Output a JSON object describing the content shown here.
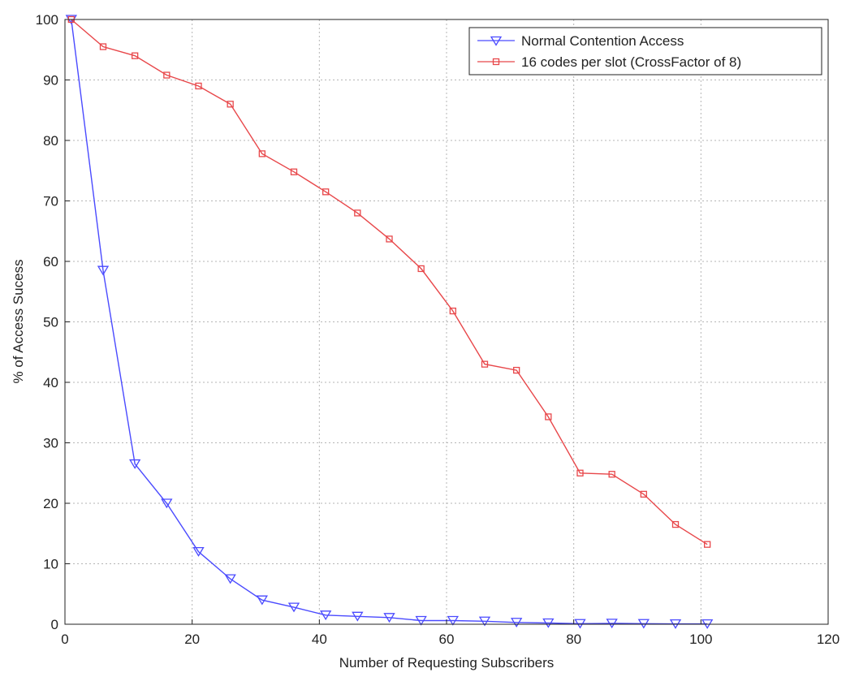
{
  "chart_data": {
    "type": "line",
    "title": "",
    "xlabel": "Number of Requesting Subscribers",
    "ylabel": "% of Access Sucess",
    "xlim": [
      0,
      120
    ],
    "ylim": [
      0,
      100
    ],
    "xticks": [
      0,
      20,
      40,
      60,
      80,
      100,
      120
    ],
    "yticks": [
      0,
      10,
      20,
      30,
      40,
      50,
      60,
      70,
      80,
      90,
      100
    ],
    "xtick_labels": [
      "0",
      "20",
      "40",
      "60",
      "80",
      "100",
      "120"
    ],
    "ytick_labels": [
      "0",
      "10",
      "20",
      "30",
      "40",
      "50",
      "60",
      "70",
      "80",
      "90",
      "100"
    ],
    "grid": true,
    "legend_position": "top-right",
    "x": [
      1,
      6,
      11,
      16,
      21,
      26,
      31,
      36,
      41,
      46,
      51,
      56,
      61,
      66,
      71,
      76,
      81,
      86,
      91,
      96,
      101
    ],
    "series": [
      {
        "name": "Normal Contention Access",
        "color": "#4a4aff",
        "marker": "triangle-down",
        "values": [
          100,
          58.5,
          26.5,
          20,
          12,
          7.5,
          4,
          2.8,
          1.5,
          1.3,
          1.1,
          0.6,
          0.6,
          0.5,
          0.3,
          0.2,
          0.1,
          0.15,
          0.1,
          0.05,
          0.05
        ]
      },
      {
        "name": "16 codes per slot (CrossFactor of 8)",
        "color": "#e8474a",
        "marker": "square",
        "values": [
          100,
          95.5,
          94,
          90.8,
          89,
          86,
          77.8,
          74.8,
          71.5,
          68,
          63.7,
          58.8,
          51.8,
          43,
          42,
          34.3,
          25,
          24.8,
          21.5,
          16.5,
          13.2
        ]
      }
    ]
  }
}
